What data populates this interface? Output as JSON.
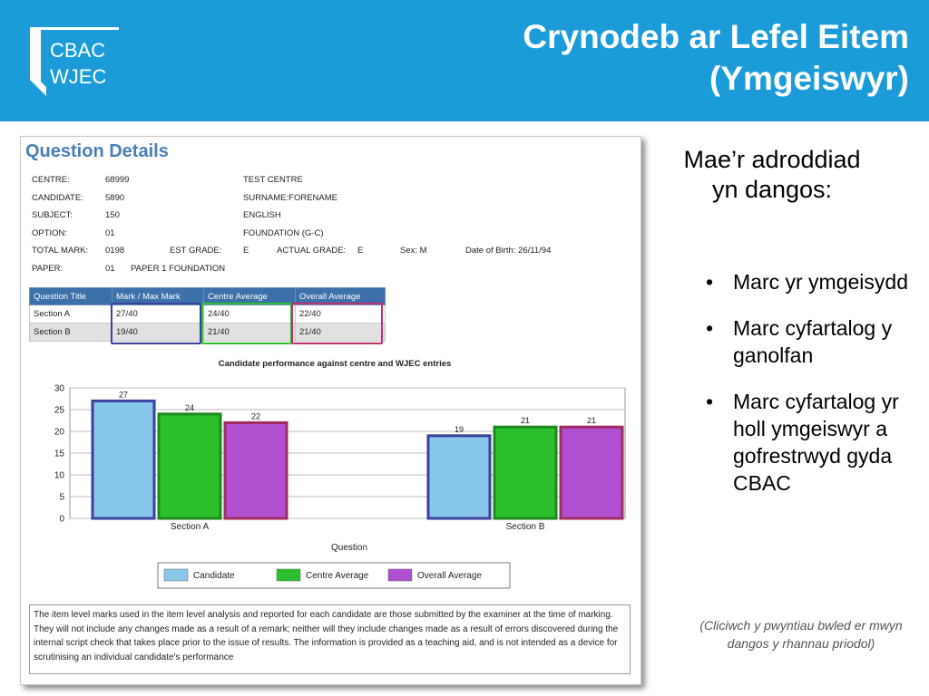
{
  "header": {
    "logo_top": "CBAC",
    "logo_bottom": "WJEC",
    "title_line1": "Crynodeb ar Lefel Eitem",
    "title_line2": "(Ymgeiswyr)",
    "bg_color": "#1b9bd8"
  },
  "report": {
    "title": "Question Details",
    "fields": {
      "centre_label": "CENTRE:",
      "centre_value": "68999",
      "centre_name": "TEST CENTRE",
      "candidate_label": "CANDIDATE:",
      "candidate_value": "5890",
      "candidate_name": "SURNAME:FORENAME",
      "subject_label": "SUBJECT:",
      "subject_value": "150",
      "subject_name": "ENGLISH",
      "option_label": "OPTION:",
      "option_value": "01",
      "option_name": "FOUNDATION (G-C)",
      "total_label": "TOTAL MARK:",
      "total_value": "0198",
      "est_grade_label": "EST GRADE:",
      "est_grade_value": "E",
      "actual_grade_label": "ACTUAL GRADE:",
      "actual_grade_value": "E",
      "sex": "Sex: M",
      "dob": "Date of Birth: 26/11/94",
      "paper_label": "PAPER:",
      "paper_value": "01",
      "paper_name": "PAPER 1 FOUNDATION"
    },
    "table": {
      "headers": [
        "Question Title",
        "Mark / Max Mark",
        "Centre Average",
        "Overall Average"
      ],
      "rows": [
        [
          "Section A",
          "27/40",
          "24/40",
          "22/40"
        ],
        [
          "Section B",
          "19/40",
          "21/40",
          "21/40"
        ]
      ]
    },
    "note": "The item level marks used in the item level analysis and reported for each candidate are those submitted by the examiner at the time of marking. They will not include any changes made as a result of a remark; neither will they include changes made as a result of errors discovered during the internal script check that takes place prior to the issue of results. The information is provided as a teaching aid, and is not intended as a device for scrutinising an individual candidate's performance"
  },
  "chart_data": {
    "type": "bar",
    "title": "Candidate performance against centre and WJEC entries",
    "xlabel": "Question",
    "ylabel": "",
    "categories": [
      "Section A",
      "Section B"
    ],
    "series": [
      {
        "name": "Candidate",
        "values": [
          27,
          19
        ],
        "color": "#87c8ea",
        "border": "#3b3f9e"
      },
      {
        "name": "Centre Average",
        "values": [
          24,
          21
        ],
        "color": "#2cc12c",
        "border": "#1c8a1c"
      },
      {
        "name": "Overall Average",
        "values": [
          22,
          21
        ],
        "color": "#b04fd0",
        "border": "#a32a5e"
      }
    ],
    "ylim": [
      0,
      30
    ],
    "yticks": [
      0,
      5,
      10,
      15,
      20,
      25,
      30
    ],
    "grid": true,
    "legend_position": "bottom"
  },
  "side": {
    "heading_line1": "Mae’r adroddiad",
    "heading_line2": "yn dangos:",
    "bullet_char": "•",
    "bullets": [
      "Marc yr ymgeisydd",
      "Marc cyfartalog y ganolfan",
      "Marc cyfartalog yr holl ymgeiswyr a gofrestrwyd gyda CBAC"
    ],
    "footnote": "(Cliciwch y pwyntiau bwled er mwyn dangos y rhannau priodol)"
  },
  "highlight_colors": {
    "candidate": "#3b3f9e",
    "centre": "#2cc12c",
    "overall": "#c0306e"
  }
}
